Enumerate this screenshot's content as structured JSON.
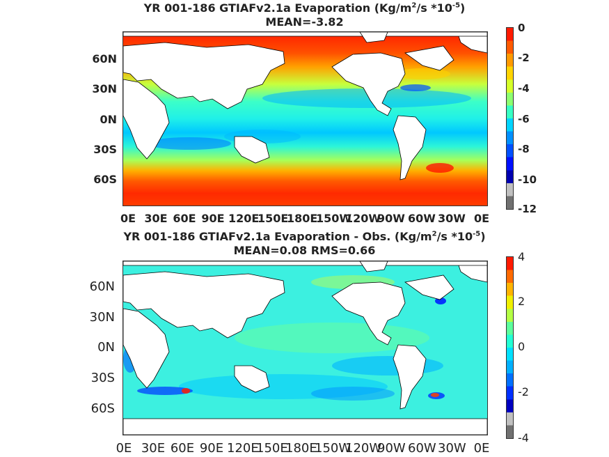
{
  "panels": [
    {
      "title_main": "YR 001-186 GTIAFv2.1a  Evaporation (Kg/m",
      "title_sup1": "2",
      "title_mid": "/s *10",
      "title_sup2": "-5",
      "title_end": ")",
      "subtitle": "MEAN=-3.82",
      "lat_labels": [
        "60N",
        "30N",
        "0N",
        "30S",
        "60S"
      ],
      "lon_labels": [
        "0E",
        "30E",
        "60E",
        "90E",
        "120E",
        "150E",
        "180E",
        "150W",
        "120W",
        "90W",
        "60W",
        "30W",
        "0E"
      ],
      "colorbar_ticks": [
        "0",
        "-2",
        "-4",
        "-6",
        "-8",
        "-10",
        "-12"
      ],
      "colorbar_range": [
        -12,
        0
      ],
      "colorbar_colors": [
        "#ff1a00",
        "#ff5a00",
        "#ff9a00",
        "#ffd400",
        "#d6ff29",
        "#8dff70",
        "#37ffc4",
        "#00d4ff",
        "#0090ff",
        "#0050ff",
        "#0010ff",
        "#0000b0",
        "#c0c0c0",
        "#707070"
      ]
    },
    {
      "title_main": "YR 001-186 GTIAFv2.1a Evaporation - Obs. (Kg/m",
      "title_sup1": "2",
      "title_mid": "/s *10",
      "title_sup2": "-5",
      "title_end": ")",
      "subtitle": "MEAN=0.08   RMS=0.66",
      "lat_labels": [
        "60N",
        "30N",
        "0N",
        "30S",
        "60S"
      ],
      "lon_labels": [
        "0E",
        "30E",
        "60E",
        "90E",
        "120E",
        "150E",
        "180E",
        "150W",
        "120W",
        "90W",
        "60W",
        "30W",
        "0E"
      ],
      "colorbar_ticks": [
        "4",
        "2",
        "0",
        "-2",
        "-4"
      ],
      "colorbar_range": [
        -4,
        4
      ],
      "colorbar_colors": [
        "#ff1a00",
        "#ff6a00",
        "#ffb400",
        "#f0f000",
        "#b4ff44",
        "#5cff9c",
        "#22ffd4",
        "#00e0ff",
        "#00b0ff",
        "#0070ff",
        "#0030ff",
        "#0000c0",
        "#c0c0c0",
        "#707070"
      ]
    }
  ],
  "colors": {
    "land": "#ffffff",
    "coast": "#000000",
    "frame": "#333333"
  }
}
